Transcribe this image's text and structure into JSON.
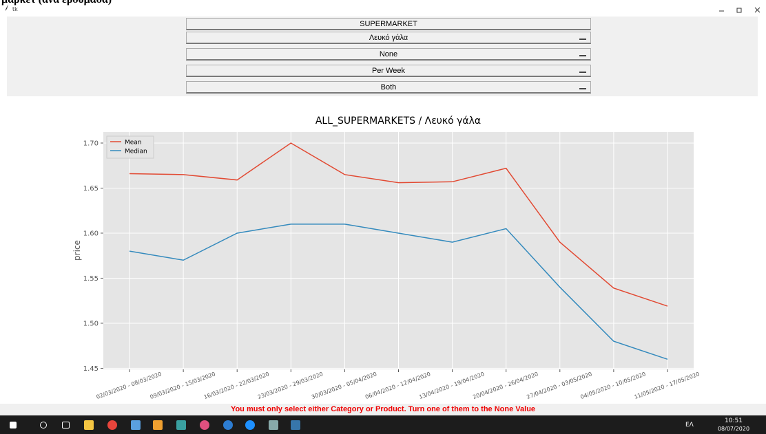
{
  "window": {
    "heading": "μαρκετ (ανά εβδομάδα)",
    "title": "tk"
  },
  "controls": [
    "SUPERMARKET",
    "Λευκό γάλα",
    "None",
    "Per Week",
    "Both"
  ],
  "chart_data": {
    "type": "line",
    "title": "ALL_SUPERMARKETS / Λευκό γάλα",
    "y_label": "price",
    "categories": [
      "02/03/2020 - 08/03/2020",
      "09/03/2020 - 15/03/2020",
      "16/03/2020 - 22/03/2020",
      "23/03/2020 - 29/03/2020",
      "30/03/2020 - 05/04/2020",
      "06/04/2020 - 12/04/2020",
      "13/04/2020 - 19/04/2020",
      "20/04/2020 - 26/04/2020",
      "27/04/2020 - 03/05/2020",
      "04/05/2020 - 10/05/2020",
      "11/05/2020 - 17/05/2020"
    ],
    "series": [
      {
        "name": "Mean",
        "color": "#e24a33",
        "values": [
          1.666,
          1.665,
          1.659,
          1.7,
          1.665,
          1.656,
          1.657,
          1.672,
          1.59,
          1.539,
          1.519
        ]
      },
      {
        "name": "Median",
        "color": "#348abd",
        "values": [
          1.58,
          1.57,
          1.6,
          1.61,
          1.61,
          1.6,
          1.59,
          1.605,
          1.54,
          1.48,
          1.46
        ]
      }
    ],
    "ylim": [
      1.4488,
      1.7122
    ],
    "yticks": [
      {
        "value": 1.45,
        "label": "1.45"
      },
      {
        "value": 1.5,
        "label": "1.50"
      },
      {
        "value": 1.55,
        "label": "1.55"
      },
      {
        "value": 1.6,
        "label": "1.60"
      },
      {
        "value": 1.65,
        "label": "1.65"
      },
      {
        "value": 1.7,
        "label": "1.70"
      }
    ],
    "grid": true,
    "legend": "upper-left"
  },
  "status": "You must only select either Category or Product. Turn one of them to the None Value",
  "taskbar": {
    "language": "ΕΛ",
    "time": "10:51",
    "date": "08/07/2020"
  }
}
